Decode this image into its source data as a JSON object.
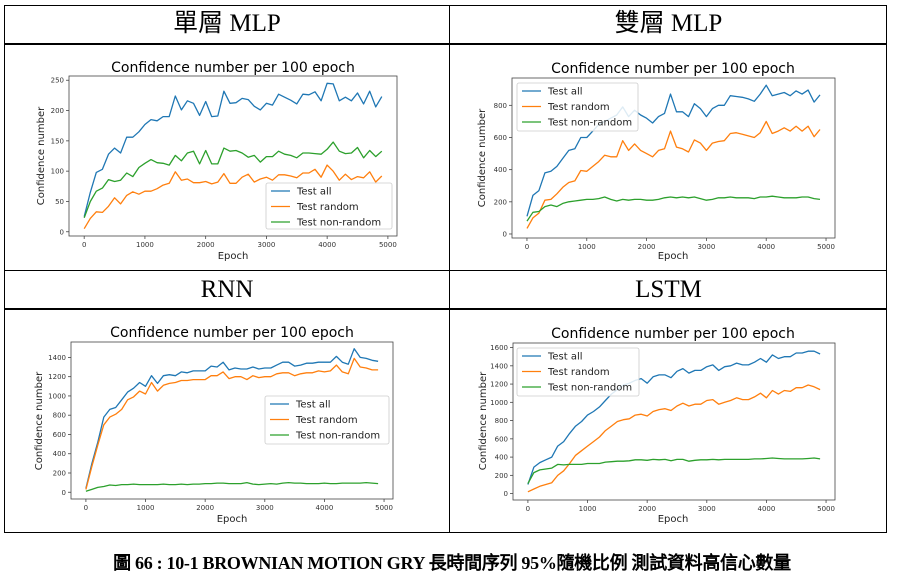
{
  "table": {
    "headers": [
      "單層 MLP",
      "雙層 MLP",
      "RNN",
      "LSTM"
    ]
  },
  "caption": "圖 66 : 10-1 BROWNIAN MOTION GRY 長時間序列 95%隨機比例 測試資料高信心數量",
  "colors": {
    "test_all": "#1f77b4",
    "test_random": "#ff7f0e",
    "test_non_random": "#2ca02c"
  },
  "chart_data": [
    {
      "type": "line",
      "panel": "單層 MLP",
      "title": "Confidence number per 100 epoch",
      "xlabel": "Epoch",
      "ylabel": "Confidence number",
      "xlim": [
        -250,
        5150
      ],
      "ylim": [
        -7,
        257
      ],
      "xticks": [
        0,
        1000,
        2000,
        3000,
        4000,
        5000
      ],
      "yticks": [
        0,
        50,
        100,
        150,
        200,
        250
      ],
      "legend": "lower-right",
      "x": [
        0,
        100,
        200,
        300,
        400,
        500,
        600,
        700,
        800,
        900,
        1000,
        1100,
        1200,
        1300,
        1400,
        1500,
        1600,
        1700,
        1800,
        1900,
        2000,
        2100,
        2200,
        2300,
        2400,
        2500,
        2600,
        2700,
        2800,
        2900,
        3000,
        3100,
        3200,
        3300,
        3400,
        3500,
        3600,
        3700,
        3800,
        3900,
        4000,
        4100,
        4200,
        4300,
        4400,
        4500,
        4600,
        4700,
        4800,
        4900
      ],
      "series": [
        {
          "name": "Test all",
          "values": [
            25,
            65,
            98,
            103,
            128,
            138,
            130,
            156,
            156,
            165,
            177,
            185,
            183,
            190,
            190,
            224,
            201,
            216,
            212,
            192,
            215,
            190,
            191,
            232,
            212,
            213,
            220,
            218,
            207,
            201,
            212,
            209,
            227,
            222,
            217,
            211,
            227,
            226,
            231,
            216,
            245,
            244,
            216,
            222,
            216,
            229,
            211,
            232,
            206,
            223
          ]
        },
        {
          "name": "Test random",
          "values": [
            5,
            22,
            33,
            32,
            42,
            56,
            46,
            60,
            66,
            62,
            67,
            67,
            71,
            77,
            80,
            99,
            85,
            87,
            81,
            81,
            83,
            79,
            82,
            96,
            80,
            80,
            90,
            95,
            82,
            87,
            90,
            85,
            94,
            94,
            92,
            89,
            97,
            97,
            103,
            90,
            110,
            100,
            85,
            95,
            86,
            91,
            89,
            99,
            82,
            92
          ]
        },
        {
          "name": "Test non-random",
          "values": [
            23,
            50,
            67,
            72,
            86,
            83,
            85,
            97,
            91,
            106,
            113,
            119,
            114,
            113,
            110,
            126,
            117,
            130,
            133,
            112,
            134,
            112,
            112,
            138,
            133,
            134,
            130,
            123,
            126,
            115,
            124,
            124,
            133,
            128,
            126,
            122,
            130,
            130,
            129,
            128,
            136,
            148,
            133,
            129,
            130,
            139,
            122,
            134,
            124,
            133
          ]
        }
      ]
    },
    {
      "type": "line",
      "panel": "雙層 MLP",
      "title": "Confidence number per 100 epoch",
      "xlabel": "Epoch",
      "ylabel": "Confidence number",
      "xlim": [
        -250,
        5150
      ],
      "ylim": [
        -25,
        970
      ],
      "xticks": [
        0,
        1000,
        2000,
        3000,
        4000,
        5000
      ],
      "yticks": [
        0,
        200,
        400,
        600,
        800
      ],
      "legend": "upper-left",
      "x": [
        0,
        100,
        200,
        300,
        400,
        500,
        600,
        700,
        800,
        900,
        1000,
        1100,
        1200,
        1300,
        1400,
        1500,
        1600,
        1700,
        1800,
        1900,
        2000,
        2100,
        2200,
        2300,
        2400,
        2500,
        2600,
        2700,
        2800,
        2900,
        3000,
        3100,
        3200,
        3300,
        3400,
        3500,
        3600,
        3700,
        3800,
        3900,
        4000,
        4100,
        4200,
        4300,
        4400,
        4500,
        4600,
        4700,
        4800,
        4900
      ],
      "series": [
        {
          "name": "Test all",
          "values": [
            110,
            240,
            270,
            380,
            390,
            420,
            470,
            520,
            530,
            600,
            600,
            640,
            680,
            700,
            720,
            740,
            790,
            730,
            770,
            740,
            720,
            690,
            730,
            750,
            870,
            760,
            760,
            730,
            810,
            780,
            730,
            780,
            800,
            800,
            860,
            855,
            850,
            840,
            825,
            870,
            925,
            860,
            870,
            880,
            860,
            890,
            870,
            895,
            820,
            865
          ]
        },
        {
          "name": "Test random",
          "values": [
            35,
            100,
            130,
            210,
            215,
            250,
            290,
            320,
            330,
            395,
            390,
            420,
            450,
            490,
            480,
            480,
            580,
            520,
            560,
            520,
            500,
            480,
            520,
            530,
            640,
            540,
            530,
            510,
            585,
            565,
            520,
            565,
            575,
            580,
            625,
            630,
            620,
            610,
            600,
            630,
            700,
            625,
            640,
            660,
            640,
            670,
            640,
            670,
            605,
            650
          ]
        },
        {
          "name": "Test non-random",
          "values": [
            80,
            135,
            140,
            170,
            180,
            170,
            190,
            200,
            205,
            210,
            215,
            215,
            220,
            230,
            215,
            205,
            215,
            210,
            215,
            215,
            210,
            210,
            215,
            225,
            230,
            225,
            230,
            225,
            230,
            220,
            210,
            215,
            225,
            225,
            230,
            225,
            225,
            225,
            220,
            230,
            230,
            235,
            230,
            225,
            225,
            225,
            230,
            230,
            220,
            215
          ]
        }
      ]
    },
    {
      "type": "line",
      "panel": "RNN",
      "title": "Confidence number per 100 epoch",
      "xlabel": "Epoch",
      "ylabel": "Confidence number",
      "xlim": [
        -250,
        5150
      ],
      "ylim": [
        -70,
        1560
      ],
      "xticks": [
        0,
        1000,
        2000,
        3000,
        4000,
        5000
      ],
      "yticks": [
        0,
        200,
        400,
        600,
        800,
        1000,
        1200,
        1400
      ],
      "legend": "center-right",
      "x": [
        0,
        100,
        200,
        300,
        400,
        500,
        600,
        700,
        800,
        900,
        1000,
        1100,
        1200,
        1300,
        1400,
        1500,
        1600,
        1700,
        1800,
        1900,
        2000,
        2100,
        2200,
        2300,
        2400,
        2500,
        2600,
        2700,
        2800,
        2900,
        3000,
        3100,
        3200,
        3300,
        3400,
        3500,
        3600,
        3700,
        3800,
        3900,
        4000,
        4100,
        4200,
        4300,
        4400,
        4500,
        4600,
        4700,
        4800,
        4900
      ],
      "series": [
        {
          "name": "Test all",
          "values": [
            40,
            300,
            520,
            780,
            860,
            880,
            960,
            1040,
            1080,
            1140,
            1100,
            1210,
            1130,
            1210,
            1220,
            1210,
            1250,
            1240,
            1260,
            1260,
            1260,
            1310,
            1300,
            1350,
            1270,
            1290,
            1280,
            1280,
            1300,
            1280,
            1290,
            1290,
            1320,
            1350,
            1350,
            1310,
            1320,
            1340,
            1340,
            1350,
            1350,
            1350,
            1410,
            1350,
            1330,
            1490,
            1400,
            1390,
            1370,
            1360
          ]
        },
        {
          "name": "Test random",
          "values": [
            30,
            270,
            490,
            700,
            780,
            810,
            860,
            960,
            990,
            1050,
            1020,
            1140,
            1050,
            1110,
            1130,
            1140,
            1160,
            1160,
            1170,
            1170,
            1170,
            1210,
            1210,
            1250,
            1180,
            1200,
            1200,
            1170,
            1210,
            1190,
            1200,
            1200,
            1230,
            1240,
            1240,
            1210,
            1230,
            1240,
            1240,
            1260,
            1250,
            1260,
            1320,
            1250,
            1230,
            1390,
            1300,
            1290,
            1270,
            1270
          ]
        },
        {
          "name": "Test non-random",
          "values": [
            10,
            30,
            50,
            60,
            75,
            70,
            80,
            80,
            85,
            80,
            80,
            80,
            80,
            85,
            80,
            80,
            85,
            80,
            85,
            85,
            90,
            90,
            95,
            95,
            90,
            90,
            90,
            100,
            85,
            80,
            85,
            90,
            85,
            95,
            100,
            95,
            95,
            90,
            90,
            90,
            95,
            90,
            90,
            95,
            95,
            95,
            95,
            100,
            95,
            90
          ]
        }
      ]
    },
    {
      "type": "line",
      "panel": "LSTM",
      "title": "Confidence number per 100 epoch",
      "xlabel": "Epoch",
      "ylabel": "Confidence number",
      "xlim": [
        -250,
        5150
      ],
      "ylim": [
        -70,
        1650
      ],
      "xticks": [
        0,
        1000,
        2000,
        3000,
        4000,
        5000
      ],
      "yticks": [
        0,
        200,
        400,
        600,
        800,
        1000,
        1200,
        1400,
        1600
      ],
      "legend": "upper-left",
      "x": [
        0,
        100,
        200,
        300,
        400,
        500,
        600,
        700,
        800,
        900,
        1000,
        1100,
        1200,
        1300,
        1400,
        1500,
        1600,
        1700,
        1800,
        1900,
        2000,
        2100,
        2200,
        2300,
        2400,
        2500,
        2600,
        2700,
        2800,
        2900,
        3000,
        3100,
        3200,
        3300,
        3400,
        3500,
        3600,
        3700,
        3800,
        3900,
        4000,
        4100,
        4200,
        4300,
        4400,
        4500,
        4600,
        4700,
        4800,
        4900
      ],
      "series": [
        {
          "name": "Test all",
          "values": [
            100,
            290,
            340,
            370,
            400,
            520,
            570,
            660,
            740,
            790,
            860,
            900,
            950,
            1020,
            1090,
            1140,
            1190,
            1210,
            1240,
            1260,
            1210,
            1280,
            1300,
            1300,
            1270,
            1340,
            1370,
            1320,
            1350,
            1350,
            1390,
            1410,
            1350,
            1390,
            1400,
            1430,
            1410,
            1410,
            1440,
            1480,
            1440,
            1520,
            1480,
            1500,
            1500,
            1540,
            1540,
            1560,
            1560,
            1530
          ]
        },
        {
          "name": "Test random",
          "values": [
            20,
            50,
            80,
            100,
            120,
            200,
            250,
            330,
            420,
            470,
            520,
            570,
            620,
            690,
            740,
            790,
            810,
            820,
            860,
            870,
            850,
            900,
            920,
            930,
            910,
            960,
            990,
            960,
            980,
            980,
            1020,
            1030,
            980,
            1000,
            1020,
            1050,
            1030,
            1030,
            1060,
            1100,
            1050,
            1130,
            1090,
            1130,
            1120,
            1160,
            1160,
            1190,
            1170,
            1140
          ]
        },
        {
          "name": "Test non-random",
          "values": [
            110,
            230,
            260,
            270,
            280,
            320,
            315,
            320,
            320,
            320,
            330,
            330,
            330,
            345,
            350,
            355,
            355,
            360,
            370,
            370,
            365,
            375,
            370,
            375,
            360,
            375,
            375,
            355,
            365,
            370,
            370,
            375,
            370,
            375,
            375,
            375,
            375,
            375,
            380,
            380,
            385,
            390,
            385,
            380,
            380,
            380,
            380,
            385,
            390,
            380
          ]
        }
      ]
    }
  ]
}
